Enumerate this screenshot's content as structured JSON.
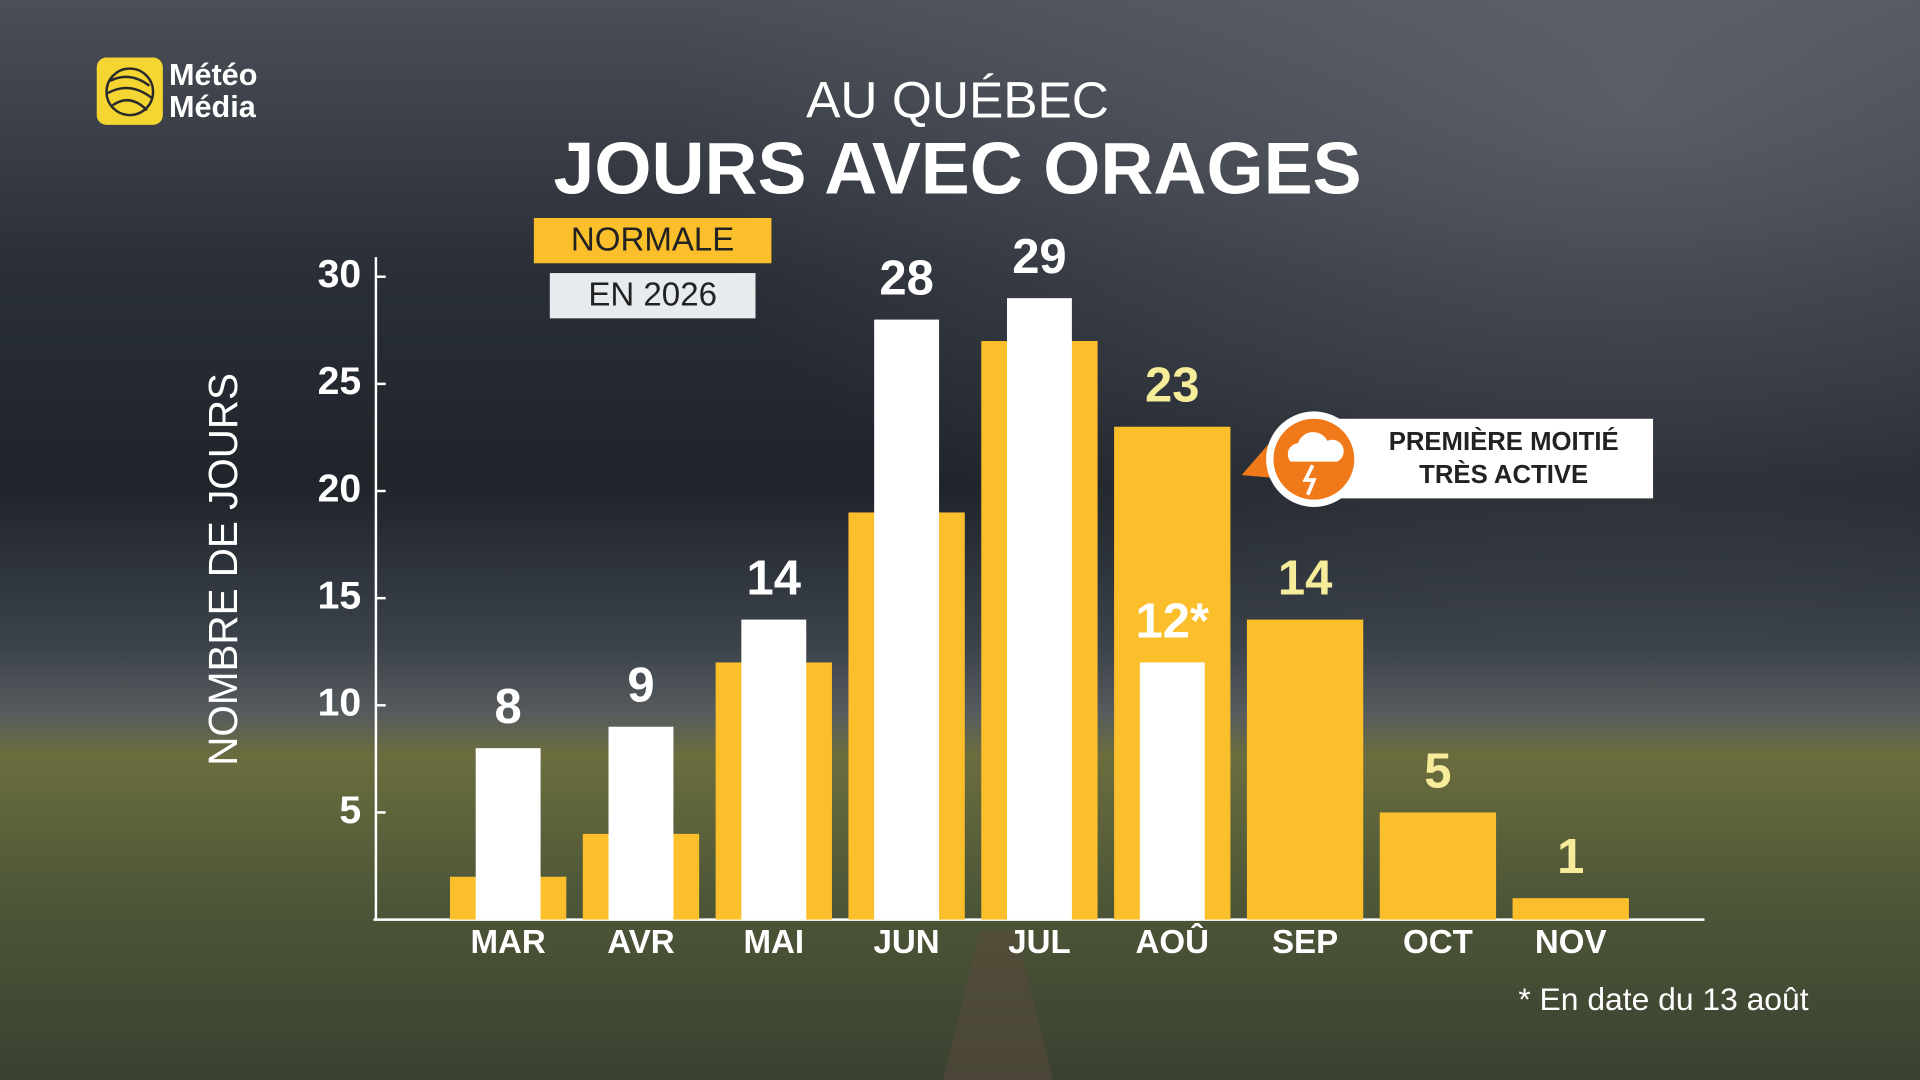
{
  "logo": {
    "line1": "Météo",
    "line2": "Média"
  },
  "chart_data": {
    "type": "bar",
    "subtitle": "AU QUÉBEC",
    "title": "JOURS AVEC ORAGES",
    "y_label": "NOMBRE DE JOURS",
    "categories": [
      "MAR",
      "AVR",
      "MAI",
      "JUN",
      "JUL",
      "AOÛ",
      "SEP",
      "OCT",
      "NOV"
    ],
    "series": [
      {
        "name": "NORMALE",
        "color": "#fbbf2c",
        "label_color": "#f6ec9a",
        "values": [
          2,
          4,
          12,
          19,
          27,
          23,
          14,
          5,
          1
        ],
        "value_labels": [
          null,
          null,
          null,
          null,
          null,
          "23",
          "14",
          "5",
          "1"
        ]
      },
      {
        "name": "EN 2026",
        "color": "#ffffff",
        "label_color": "#ffffff",
        "values": [
          8,
          9,
          14,
          28,
          29,
          12,
          null,
          null,
          null
        ],
        "value_labels": [
          "8",
          "9",
          "14",
          "28",
          "29",
          "12*",
          null,
          null,
          null
        ]
      }
    ],
    "ylim": [
      0,
      30
    ],
    "yticks": [
      5,
      10,
      15,
      20,
      25,
      30
    ],
    "grid": false,
    "legend": "upper left",
    "annotation": {
      "lines": [
        "PREMIÈRE MOITIÉ",
        "TRÈS ACTIVE"
      ]
    },
    "footnote": "* En date du 13 août"
  }
}
